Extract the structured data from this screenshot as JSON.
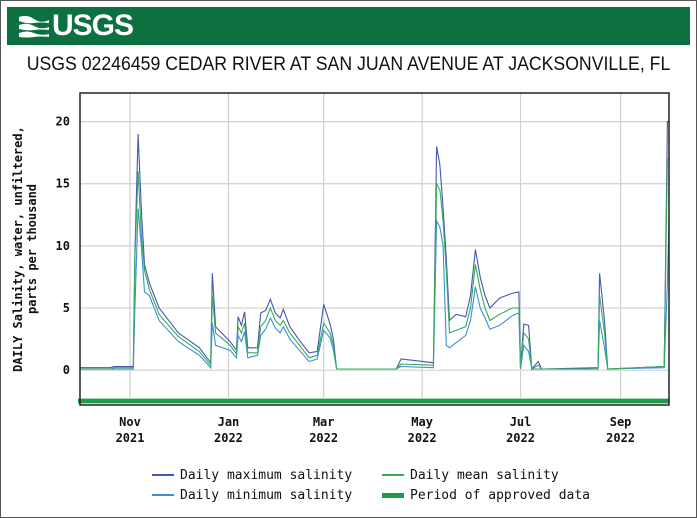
{
  "header": {
    "logo_text": "USGS",
    "banner_color": "#0d7040"
  },
  "title": "USGS 02246459 CEDAR RIVER AT SAN JUAN AVENUE AT JACKSONVILLE, FL",
  "chart_data": {
    "type": "line",
    "title": "USGS 02246459 CEDAR RIVER AT SAN JUAN AVENUE AT JACKSONVILLE, FL",
    "ylabel_lines": [
      "DAILY Salinity, water, unfiltered,",
      "parts per thousand"
    ],
    "ylim": [
      -2.8,
      22.3
    ],
    "xlim": [
      "2021-10-01",
      "2022-10-01"
    ],
    "yticks": [
      0,
      5,
      10,
      15,
      20
    ],
    "xticks": [
      {
        "date": "2021-11-01",
        "label1": "Nov",
        "label2": "2021"
      },
      {
        "date": "2022-01-01",
        "label1": "Jan",
        "label2": "2022"
      },
      {
        "date": "2022-03-01",
        "label1": "Mar",
        "label2": "2022"
      },
      {
        "date": "2022-05-01",
        "label1": "May",
        "label2": "2022"
      },
      {
        "date": "2022-07-01",
        "label1": "Jul",
        "label2": "2022"
      },
      {
        "date": "2022-09-01",
        "label1": "Sep",
        "label2": "2022"
      }
    ],
    "grid": true,
    "legend_position": "bottom",
    "series": [
      {
        "name": "Daily maximum salinity",
        "color": "#4557b0",
        "points": [
          [
            "2021-10-01",
            0.2
          ],
          [
            "2021-10-20",
            0.2
          ],
          [
            "2021-10-22",
            0.3
          ],
          [
            "2021-11-03",
            0.3
          ],
          [
            "2021-11-04",
            9.5
          ],
          [
            "2021-11-06",
            19
          ],
          [
            "2021-11-08",
            13
          ],
          [
            "2021-11-10",
            8.5
          ],
          [
            "2021-11-13",
            7
          ],
          [
            "2021-11-19",
            5
          ],
          [
            "2021-12-01",
            3
          ],
          [
            "2021-12-14",
            1.8
          ],
          [
            "2021-12-21",
            0.6
          ],
          [
            "2021-12-22",
            7.8
          ],
          [
            "2021-12-24",
            3.5
          ],
          [
            "2022-01-02",
            2.3
          ],
          [
            "2022-01-06",
            1.6
          ],
          [
            "2022-01-07",
            4.3
          ],
          [
            "2022-01-09",
            3.6
          ],
          [
            "2022-01-11",
            4.7
          ],
          [
            "2022-01-13",
            1.8
          ],
          [
            "2022-01-19",
            1.8
          ],
          [
            "2022-01-21",
            4.6
          ],
          [
            "2022-01-24",
            4.8
          ],
          [
            "2022-01-27",
            5.7
          ],
          [
            "2022-01-30",
            4.6
          ],
          [
            "2022-02-02",
            4.2
          ],
          [
            "2022-02-04",
            4.9
          ],
          [
            "2022-02-08",
            3.5
          ],
          [
            "2022-02-14",
            2.4
          ],
          [
            "2022-02-20",
            1.4
          ],
          [
            "2022-02-25",
            1.5
          ],
          [
            "2022-03-01",
            5.3
          ],
          [
            "2022-03-05",
            3.7
          ],
          [
            "2022-03-07",
            2.5
          ],
          [
            "2022-03-09",
            0.1
          ],
          [
            "2022-04-15",
            0.1
          ],
          [
            "2022-04-18",
            0.9
          ],
          [
            "2022-05-08",
            0.6
          ],
          [
            "2022-05-10",
            18
          ],
          [
            "2022-05-12",
            16.5
          ],
          [
            "2022-05-14",
            13
          ],
          [
            "2022-05-16",
            9
          ],
          [
            "2022-05-18",
            4
          ],
          [
            "2022-05-22",
            4.5
          ],
          [
            "2022-05-28",
            4.3
          ],
          [
            "2022-05-31",
            6
          ],
          [
            "2022-06-03",
            9.7
          ],
          [
            "2022-06-06",
            7.5
          ],
          [
            "2022-06-09",
            6
          ],
          [
            "2022-06-12",
            5
          ],
          [
            "2022-06-18",
            5.8
          ],
          [
            "2022-06-26",
            6.2
          ],
          [
            "2022-06-30",
            6.3
          ],
          [
            "2022-07-01",
            0.3
          ],
          [
            "2022-07-03",
            3.7
          ],
          [
            "2022-07-06",
            3.6
          ],
          [
            "2022-07-08",
            0.1
          ],
          [
            "2022-07-12",
            0.7
          ],
          [
            "2022-07-14",
            0.1
          ],
          [
            "2022-08-18",
            0.2
          ],
          [
            "2022-08-19",
            7.8
          ],
          [
            "2022-08-22",
            4
          ],
          [
            "2022-08-24",
            0.1
          ],
          [
            "2022-09-28",
            0.3
          ],
          [
            "2022-09-30",
            20
          ],
          [
            "2022-10-01",
            20
          ]
        ]
      },
      {
        "name": "Daily minimum salinity",
        "color": "#3d8fd6",
        "points": [
          [
            "2021-10-01",
            0.1
          ],
          [
            "2021-11-03",
            0.1
          ],
          [
            "2021-11-04",
            5
          ],
          [
            "2021-11-06",
            13
          ],
          [
            "2021-11-08",
            10
          ],
          [
            "2021-11-10",
            6.3
          ],
          [
            "2021-11-13",
            6
          ],
          [
            "2021-11-19",
            4
          ],
          [
            "2021-12-01",
            2.3
          ],
          [
            "2021-12-14",
            1.2
          ],
          [
            "2021-12-21",
            0.2
          ],
          [
            "2021-12-22",
            3.8
          ],
          [
            "2021-12-24",
            2
          ],
          [
            "2022-01-02",
            1.6
          ],
          [
            "2022-01-06",
            1
          ],
          [
            "2022-01-07",
            2.8
          ],
          [
            "2022-01-09",
            2.3
          ],
          [
            "2022-01-11",
            3.1
          ],
          [
            "2022-01-13",
            1
          ],
          [
            "2022-01-19",
            1.2
          ],
          [
            "2022-01-21",
            2.8
          ],
          [
            "2022-01-24",
            3.3
          ],
          [
            "2022-01-27",
            4.2
          ],
          [
            "2022-01-30",
            3.4
          ],
          [
            "2022-02-02",
            3
          ],
          [
            "2022-02-04",
            3.5
          ],
          [
            "2022-02-08",
            2.5
          ],
          [
            "2022-02-14",
            1.6
          ],
          [
            "2022-02-20",
            0.7
          ],
          [
            "2022-02-25",
            0.9
          ],
          [
            "2022-03-01",
            3.2
          ],
          [
            "2022-03-05",
            2.6
          ],
          [
            "2022-03-07",
            1.6
          ],
          [
            "2022-03-09",
            0.1
          ],
          [
            "2022-04-15",
            0.1
          ],
          [
            "2022-04-18",
            0.3
          ],
          [
            "2022-05-08",
            0.2
          ],
          [
            "2022-05-10",
            12
          ],
          [
            "2022-05-12",
            11.5
          ],
          [
            "2022-05-14",
            10
          ],
          [
            "2022-05-16",
            2
          ],
          [
            "2022-05-18",
            1.8
          ],
          [
            "2022-05-22",
            2.2
          ],
          [
            "2022-05-28",
            2.8
          ],
          [
            "2022-05-31",
            4
          ],
          [
            "2022-06-03",
            6.7
          ],
          [
            "2022-06-06",
            5
          ],
          [
            "2022-06-09",
            4.2
          ],
          [
            "2022-06-12",
            3.3
          ],
          [
            "2022-06-18",
            3.6
          ],
          [
            "2022-06-26",
            4.4
          ],
          [
            "2022-06-30",
            4.6
          ],
          [
            "2022-07-01",
            0.1
          ],
          [
            "2022-07-03",
            2
          ],
          [
            "2022-07-06",
            1.5
          ],
          [
            "2022-07-08",
            0.1
          ],
          [
            "2022-08-18",
            0.1
          ],
          [
            "2022-08-19",
            4
          ],
          [
            "2022-08-22",
            1.8
          ],
          [
            "2022-08-24",
            0.1
          ],
          [
            "2022-09-28",
            0.2
          ],
          [
            "2022-09-30",
            7
          ],
          [
            "2022-10-01",
            12
          ]
        ]
      },
      {
        "name": "Daily mean salinity",
        "color": "#34ad5a",
        "points": [
          [
            "2021-10-01",
            0.1
          ],
          [
            "2021-10-20",
            0.1
          ],
          [
            "2021-10-22",
            0.2
          ],
          [
            "2021-11-03",
            0.2
          ],
          [
            "2021-11-04",
            9
          ],
          [
            "2021-11-06",
            16
          ],
          [
            "2021-11-08",
            11
          ],
          [
            "2021-11-10",
            8
          ],
          [
            "2021-11-13",
            6.5
          ],
          [
            "2021-11-19",
            4.5
          ],
          [
            "2021-12-01",
            2.7
          ],
          [
            "2021-12-14",
            1.5
          ],
          [
            "2021-12-21",
            0.4
          ],
          [
            "2021-12-22",
            6
          ],
          [
            "2021-12-24",
            3
          ],
          [
            "2022-01-02",
            2
          ],
          [
            "2022-01-06",
            1.3
          ],
          [
            "2022-01-07",
            3.5
          ],
          [
            "2022-01-09",
            3
          ],
          [
            "2022-01-11",
            3.8
          ],
          [
            "2022-01-13",
            1.4
          ],
          [
            "2022-01-19",
            1.4
          ],
          [
            "2022-01-21",
            3.5
          ],
          [
            "2022-01-24",
            4
          ],
          [
            "2022-01-27",
            5
          ],
          [
            "2022-01-30",
            4
          ],
          [
            "2022-02-02",
            3.6
          ],
          [
            "2022-02-04",
            4
          ],
          [
            "2022-02-08",
            3
          ],
          [
            "2022-02-14",
            2
          ],
          [
            "2022-02-20",
            1
          ],
          [
            "2022-02-25",
            1.2
          ],
          [
            "2022-03-01",
            3.8
          ],
          [
            "2022-03-05",
            3
          ],
          [
            "2022-03-07",
            2
          ],
          [
            "2022-03-09",
            0.1
          ],
          [
            "2022-04-15",
            0.1
          ],
          [
            "2022-04-18",
            0.5
          ],
          [
            "2022-05-08",
            0.4
          ],
          [
            "2022-05-10",
            15
          ],
          [
            "2022-05-12",
            14.5
          ],
          [
            "2022-05-14",
            12
          ],
          [
            "2022-05-16",
            8
          ],
          [
            "2022-05-18",
            3
          ],
          [
            "2022-05-22",
            3.2
          ],
          [
            "2022-05-28",
            3.5
          ],
          [
            "2022-05-31",
            5
          ],
          [
            "2022-06-03",
            8.5
          ],
          [
            "2022-06-06",
            6.5
          ],
          [
            "2022-06-09",
            5
          ],
          [
            "2022-06-12",
            4
          ],
          [
            "2022-06-18",
            4.5
          ],
          [
            "2022-06-26",
            5
          ],
          [
            "2022-06-30",
            5
          ],
          [
            "2022-07-01",
            0.3
          ],
          [
            "2022-07-03",
            3
          ],
          [
            "2022-07-06",
            2.5
          ],
          [
            "2022-07-08",
            0.1
          ],
          [
            "2022-07-12",
            0.4
          ],
          [
            "2022-07-14",
            0.1
          ],
          [
            "2022-08-18",
            0.1
          ],
          [
            "2022-08-19",
            6
          ],
          [
            "2022-08-22",
            3
          ],
          [
            "2022-08-24",
            0.1
          ],
          [
            "2022-09-28",
            0.3
          ],
          [
            "2022-09-30",
            17
          ],
          [
            "2022-10-01",
            17
          ]
        ]
      }
    ],
    "approved_period": {
      "name": "Period of approved data",
      "color": "#1a9e48",
      "start": "2021-10-01",
      "end": "2022-10-01"
    }
  },
  "legend": [
    {
      "label": "Daily maximum salinity",
      "color": "#4557b0"
    },
    {
      "label": "Daily mean salinity",
      "color": "#34ad5a"
    },
    {
      "label": "Daily minimum salinity",
      "color": "#3d8fd6"
    },
    {
      "label": "Period of approved data",
      "color": "#1a9e48"
    }
  ]
}
